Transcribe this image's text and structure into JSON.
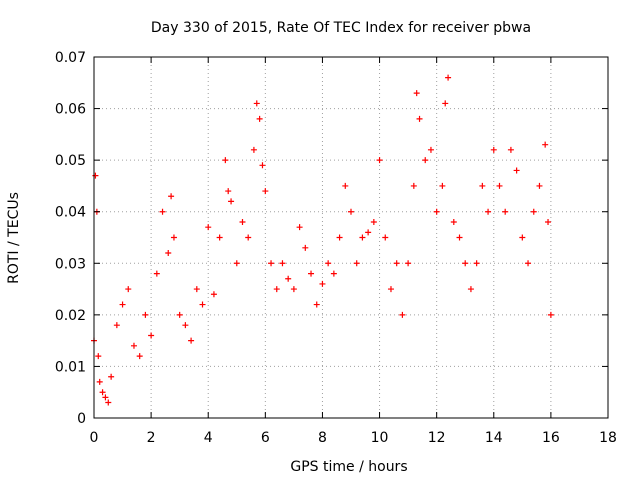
{
  "chart_data": {
    "type": "scatter",
    "title": "Day 330 of 2015, Rate Of TEC Index for receiver pbwa",
    "xlabel": "GPS time / hours",
    "ylabel": "ROTI / TECUs",
    "xlim": [
      0,
      18
    ],
    "ylim": [
      0,
      0.07
    ],
    "x_ticks": [
      0,
      2,
      4,
      6,
      8,
      10,
      12,
      14,
      16,
      18
    ],
    "y_ticks": [
      0,
      0.01,
      0.02,
      0.03,
      0.04,
      0.05,
      0.06,
      0.07
    ],
    "x_tick_labels": [
      "0",
      "2",
      "4",
      "6",
      "8",
      "10",
      "12",
      "14",
      "16",
      "18"
    ],
    "y_tick_labels": [
      "0",
      "0.01",
      "0.02",
      "0.03",
      "0.04",
      "0.05",
      "0.06",
      "0.07"
    ],
    "grid": true,
    "legend": "none",
    "marker": "+",
    "series": [
      {
        "name": "ROTI",
        "color": "#ff0000",
        "x": [
          0.0,
          0.05,
          0.1,
          0.15,
          0.2,
          0.3,
          0.4,
          0.5,
          0.6,
          0.8,
          1.0,
          1.2,
          1.4,
          1.6,
          1.8,
          2.0,
          2.2,
          2.4,
          2.6,
          2.7,
          2.8,
          3.0,
          3.2,
          3.4,
          3.6,
          3.8,
          4.0,
          4.2,
          4.4,
          4.6,
          4.7,
          4.8,
          5.0,
          5.2,
          5.4,
          5.6,
          5.7,
          5.8,
          5.9,
          6.0,
          6.2,
          6.4,
          6.6,
          6.8,
          7.0,
          7.2,
          7.4,
          7.6,
          7.8,
          8.0,
          8.2,
          8.4,
          8.6,
          8.8,
          9.0,
          9.2,
          9.4,
          9.6,
          9.8,
          10.0,
          10.2,
          10.4,
          10.6,
          10.8,
          11.0,
          11.2,
          11.3,
          11.4,
          11.6,
          11.8,
          12.0,
          12.2,
          12.3,
          12.4,
          12.6,
          12.8,
          13.0,
          13.2,
          13.4,
          13.6,
          13.8,
          14.0,
          14.2,
          14.4,
          14.6,
          14.8,
          15.0,
          15.2,
          15.4,
          15.6,
          15.8,
          15.9,
          16.0
        ],
        "y": [
          0.015,
          0.047,
          0.04,
          0.012,
          0.007,
          0.005,
          0.004,
          0.003,
          0.008,
          0.018,
          0.022,
          0.025,
          0.014,
          0.012,
          0.02,
          0.016,
          0.028,
          0.04,
          0.032,
          0.043,
          0.035,
          0.02,
          0.018,
          0.015,
          0.025,
          0.022,
          0.037,
          0.024,
          0.035,
          0.05,
          0.044,
          0.042,
          0.03,
          0.038,
          0.035,
          0.052,
          0.061,
          0.058,
          0.049,
          0.044,
          0.03,
          0.025,
          0.03,
          0.027,
          0.025,
          0.037,
          0.033,
          0.028,
          0.022,
          0.026,
          0.03,
          0.028,
          0.035,
          0.045,
          0.04,
          0.03,
          0.035,
          0.036,
          0.038,
          0.05,
          0.035,
          0.025,
          0.03,
          0.02,
          0.03,
          0.045,
          0.063,
          0.058,
          0.05,
          0.052,
          0.04,
          0.045,
          0.061,
          0.066,
          0.038,
          0.035,
          0.03,
          0.025,
          0.03,
          0.045,
          0.04,
          0.052,
          0.045,
          0.04,
          0.052,
          0.048,
          0.035,
          0.03,
          0.04,
          0.045,
          0.053,
          0.038,
          0.02
        ]
      }
    ]
  }
}
